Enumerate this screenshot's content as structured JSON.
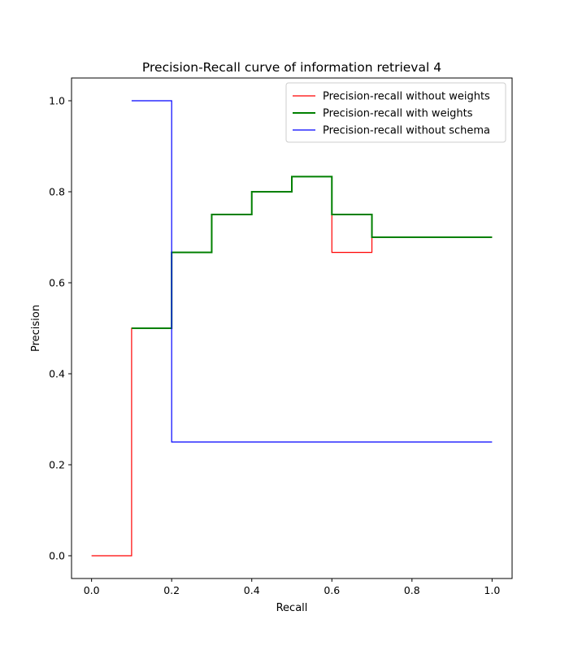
{
  "chart_data": {
    "type": "line",
    "step": "post",
    "title": "Precision-Recall curve of information retrieval 4",
    "xlabel": "Recall",
    "ylabel": "Precision",
    "xlim": [
      -0.05,
      1.05
    ],
    "ylim": [
      -0.05,
      1.05
    ],
    "xticks": [
      0.0,
      0.2,
      0.4,
      0.6,
      0.8,
      1.0
    ],
    "xtick_labels": [
      "0.0",
      "0.2",
      "0.4",
      "0.6",
      "0.8",
      "1.0"
    ],
    "yticks": [
      0.0,
      0.2,
      0.4,
      0.6,
      0.8,
      1.0
    ],
    "ytick_labels": [
      "0.0",
      "0.2",
      "0.4",
      "0.6",
      "0.8",
      "1.0"
    ],
    "grid": false,
    "legend": "top-right",
    "series": [
      {
        "name": "Precision-recall without weights",
        "color": "#ff0000",
        "line_width": "thin",
        "x": [
          0.0,
          0.1,
          0.2,
          0.3,
          0.4,
          0.5,
          0.6,
          0.7,
          1.0
        ],
        "y": [
          0.0,
          0.5,
          0.6667,
          0.75,
          0.8,
          0.8333,
          0.6667,
          0.7,
          0.7
        ]
      },
      {
        "name": "Precision-recall with weights",
        "color": "#008000",
        "line_width": "thick",
        "x": [
          0.1,
          0.2,
          0.3,
          0.4,
          0.5,
          0.6,
          0.7,
          1.0
        ],
        "y": [
          0.5,
          0.6667,
          0.75,
          0.8,
          0.8333,
          0.75,
          0.7,
          0.7
        ]
      },
      {
        "name": "Precision-recall without schema",
        "color": "#0000ff",
        "line_width": "thin",
        "x": [
          0.1,
          0.2,
          1.0
        ],
        "y": [
          1.0,
          0.25,
          0.25
        ]
      }
    ]
  }
}
